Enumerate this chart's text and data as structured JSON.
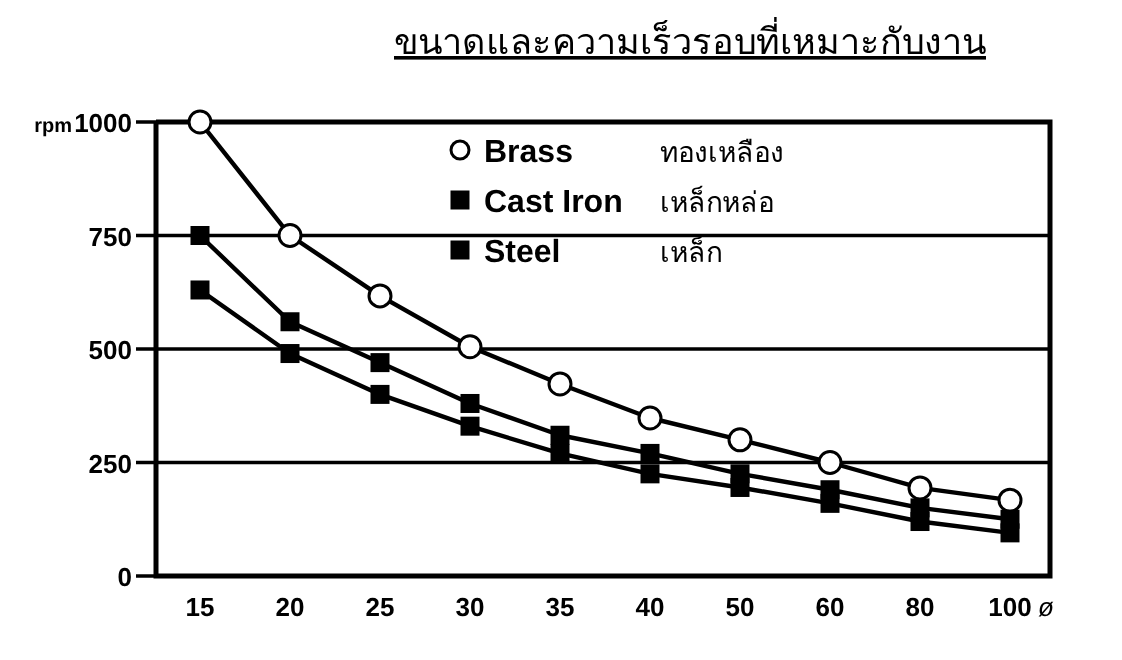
{
  "chart_data": {
    "type": "line",
    "title": "ขนาดและความเร็วรอบที่เหมาะกับงาน",
    "ylabel": "rpm",
    "xlabel": "ø",
    "categories": [
      "15",
      "20",
      "25",
      "30",
      "35",
      "40",
      "50",
      "60",
      "80",
      "100"
    ],
    "ylim": [
      0,
      1000
    ],
    "yticks": [
      0,
      250,
      500,
      750,
      1000
    ],
    "grid": "y",
    "legend": "top right",
    "line_style": "solid",
    "series": [
      {
        "name": "Brass ทองเหลือง",
        "color": "#000000",
        "marker": "circle",
        "values": [
          1000,
          750,
          617,
          505,
          423,
          348,
          300,
          250,
          194,
          167
        ]
      },
      {
        "name": "Cast Iron เหล็กหล่อ",
        "color": "#000000",
        "marker": "square",
        "values": [
          750,
          560,
          470,
          380,
          310,
          270,
          225,
          190,
          150,
          125
        ]
      },
      {
        "name": "Steel เหล็ก",
        "color": "#000000",
        "marker": "square",
        "values": [
          630,
          490,
          400,
          330,
          270,
          225,
          195,
          160,
          120,
          95
        ]
      }
    ]
  }
}
